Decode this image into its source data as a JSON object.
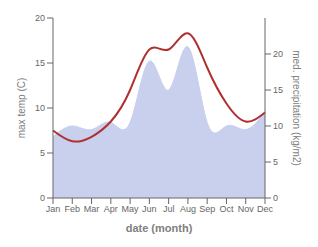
{
  "chart_data": {
    "type": "line",
    "categories": [
      "Jan",
      "Feb",
      "Mar",
      "Apr",
      "May",
      "Jun",
      "Jul",
      "Aug",
      "Sep",
      "Oct",
      "Nov",
      "Dec"
    ],
    "xlabel": "date (month)",
    "ylabel": "max temp (C)",
    "y2label": "med. precipitation (kg/m2)",
    "ylim": [
      0,
      20
    ],
    "yticks": [
      0,
      5,
      10,
      15,
      20
    ],
    "y2lim": [
      0,
      25
    ],
    "y2ticks": [
      0,
      5,
      10,
      15,
      20
    ],
    "series": [
      {
        "type": "area",
        "axis": "y2",
        "color": "#c8d0ee",
        "values": [
          8.5,
          10.0,
          9.5,
          10.5,
          10.5,
          19.0,
          15.0,
          21.0,
          10.5,
          10.0,
          9.5,
          12.0
        ]
      },
      {
        "type": "line",
        "color": "#b03030",
        "values": [
          7.5,
          6.3,
          6.8,
          8.5,
          12.0,
          16.5,
          16.5,
          18.3,
          14.5,
          10.5,
          8.5,
          9.5
        ]
      }
    ]
  }
}
